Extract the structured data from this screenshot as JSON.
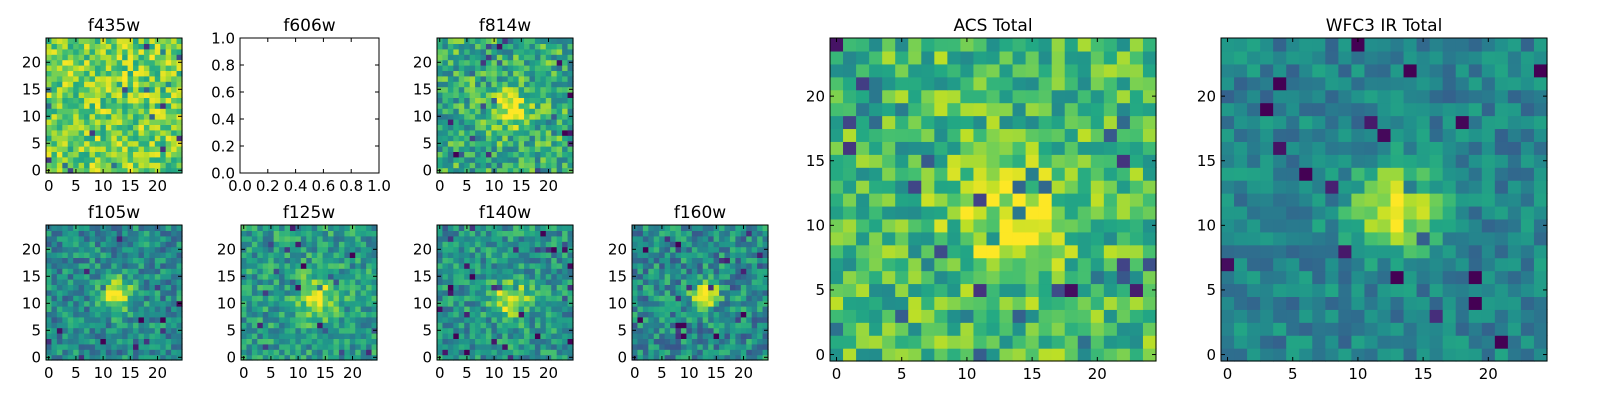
{
  "chart_data": [
    {
      "type": "heatmap",
      "title": "f435w",
      "xticks": [
        "0",
        "5",
        "10",
        "15",
        "20"
      ],
      "yticks": [
        "0",
        "5",
        "10",
        "15",
        "20"
      ],
      "grid_size": [
        25,
        25
      ],
      "colormap": "viridis",
      "background_level": 0.78,
      "noise_level": 0.22,
      "source": null,
      "empty": false
    },
    {
      "type": "heatmap",
      "title": "f606w",
      "xticks": [
        "0.0",
        "0.2",
        "0.4",
        "0.6",
        "0.8",
        "1.0"
      ],
      "yticks": [
        "0.0",
        "0.2",
        "0.4",
        "0.6",
        "0.8",
        "1.0"
      ],
      "xlim": [
        0,
        1
      ],
      "ylim": [
        0,
        1
      ],
      "empty": true
    },
    {
      "type": "heatmap",
      "title": "f814w",
      "xticks": [
        "0",
        "5",
        "10",
        "15",
        "20"
      ],
      "yticks": [
        "0",
        "5",
        "10",
        "15",
        "20"
      ],
      "grid_size": [
        25,
        25
      ],
      "colormap": "viridis",
      "background_level": 0.62,
      "noise_level": 0.24,
      "source": {
        "x": 13,
        "y": 11,
        "amplitude": 0.35,
        "sigma": 2.5
      },
      "empty": false
    },
    {
      "type": "heatmap",
      "title": "f105w",
      "xticks": [
        "0",
        "5",
        "10",
        "15",
        "20"
      ],
      "yticks": [
        "0",
        "5",
        "10",
        "15",
        "20"
      ],
      "grid_size": [
        25,
        25
      ],
      "colormap": "viridis",
      "background_level": 0.48,
      "noise_level": 0.2,
      "source": {
        "x": 12.5,
        "y": 11.5,
        "amplitude": 0.5,
        "sigma": 2.2
      },
      "empty": false
    },
    {
      "type": "heatmap",
      "title": "f125w",
      "xticks": [
        "0",
        "5",
        "10",
        "15",
        "20"
      ],
      "yticks": [
        "0",
        "5",
        "10",
        "15",
        "20"
      ],
      "grid_size": [
        25,
        25
      ],
      "colormap": "viridis",
      "background_level": 0.55,
      "noise_level": 0.2,
      "source": {
        "x": 13.5,
        "y": 11,
        "amplitude": 0.42,
        "sigma": 2.6
      },
      "empty": false
    },
    {
      "type": "heatmap",
      "title": "f140w",
      "xticks": [
        "0",
        "5",
        "10",
        "15",
        "20"
      ],
      "yticks": [
        "0",
        "5",
        "10",
        "15",
        "20"
      ],
      "grid_size": [
        25,
        25
      ],
      "colormap": "viridis",
      "background_level": 0.52,
      "noise_level": 0.2,
      "source": {
        "x": 13,
        "y": 11,
        "amplitude": 0.45,
        "sigma": 2.4
      },
      "empty": false
    },
    {
      "type": "heatmap",
      "title": "f160w",
      "xticks": [
        "0",
        "5",
        "10",
        "15",
        "20"
      ],
      "yticks": [
        "0",
        "5",
        "10",
        "15",
        "20"
      ],
      "grid_size": [
        25,
        25
      ],
      "colormap": "viridis",
      "background_level": 0.48,
      "noise_level": 0.22,
      "source": {
        "x": 13,
        "y": 11.5,
        "amplitude": 0.52,
        "sigma": 1.8
      },
      "empty": false
    },
    {
      "type": "heatmap",
      "title": "ACS Total",
      "xticks": [
        "0",
        "5",
        "10",
        "15",
        "20"
      ],
      "yticks": [
        "0",
        "5",
        "10",
        "15",
        "20"
      ],
      "grid_size": [
        25,
        25
      ],
      "colormap": "viridis",
      "background_level": 0.68,
      "noise_level": 0.22,
      "source": {
        "x": 13.5,
        "y": 10.5,
        "amplitude": 0.28,
        "sigma": 3
      },
      "empty": false
    },
    {
      "type": "heatmap",
      "title": "WFC3 IR Total",
      "xticks": [
        "0",
        "5",
        "10",
        "15",
        "20"
      ],
      "yticks": [
        "0",
        "5",
        "10",
        "15",
        "20"
      ],
      "grid_size": [
        25,
        25
      ],
      "colormap": "viridis",
      "background_level": 0.45,
      "noise_level": 0.14,
      "source": {
        "x": 13,
        "y": 11.5,
        "amplitude": 0.55,
        "sigma": 2.3
      },
      "empty": false
    }
  ]
}
